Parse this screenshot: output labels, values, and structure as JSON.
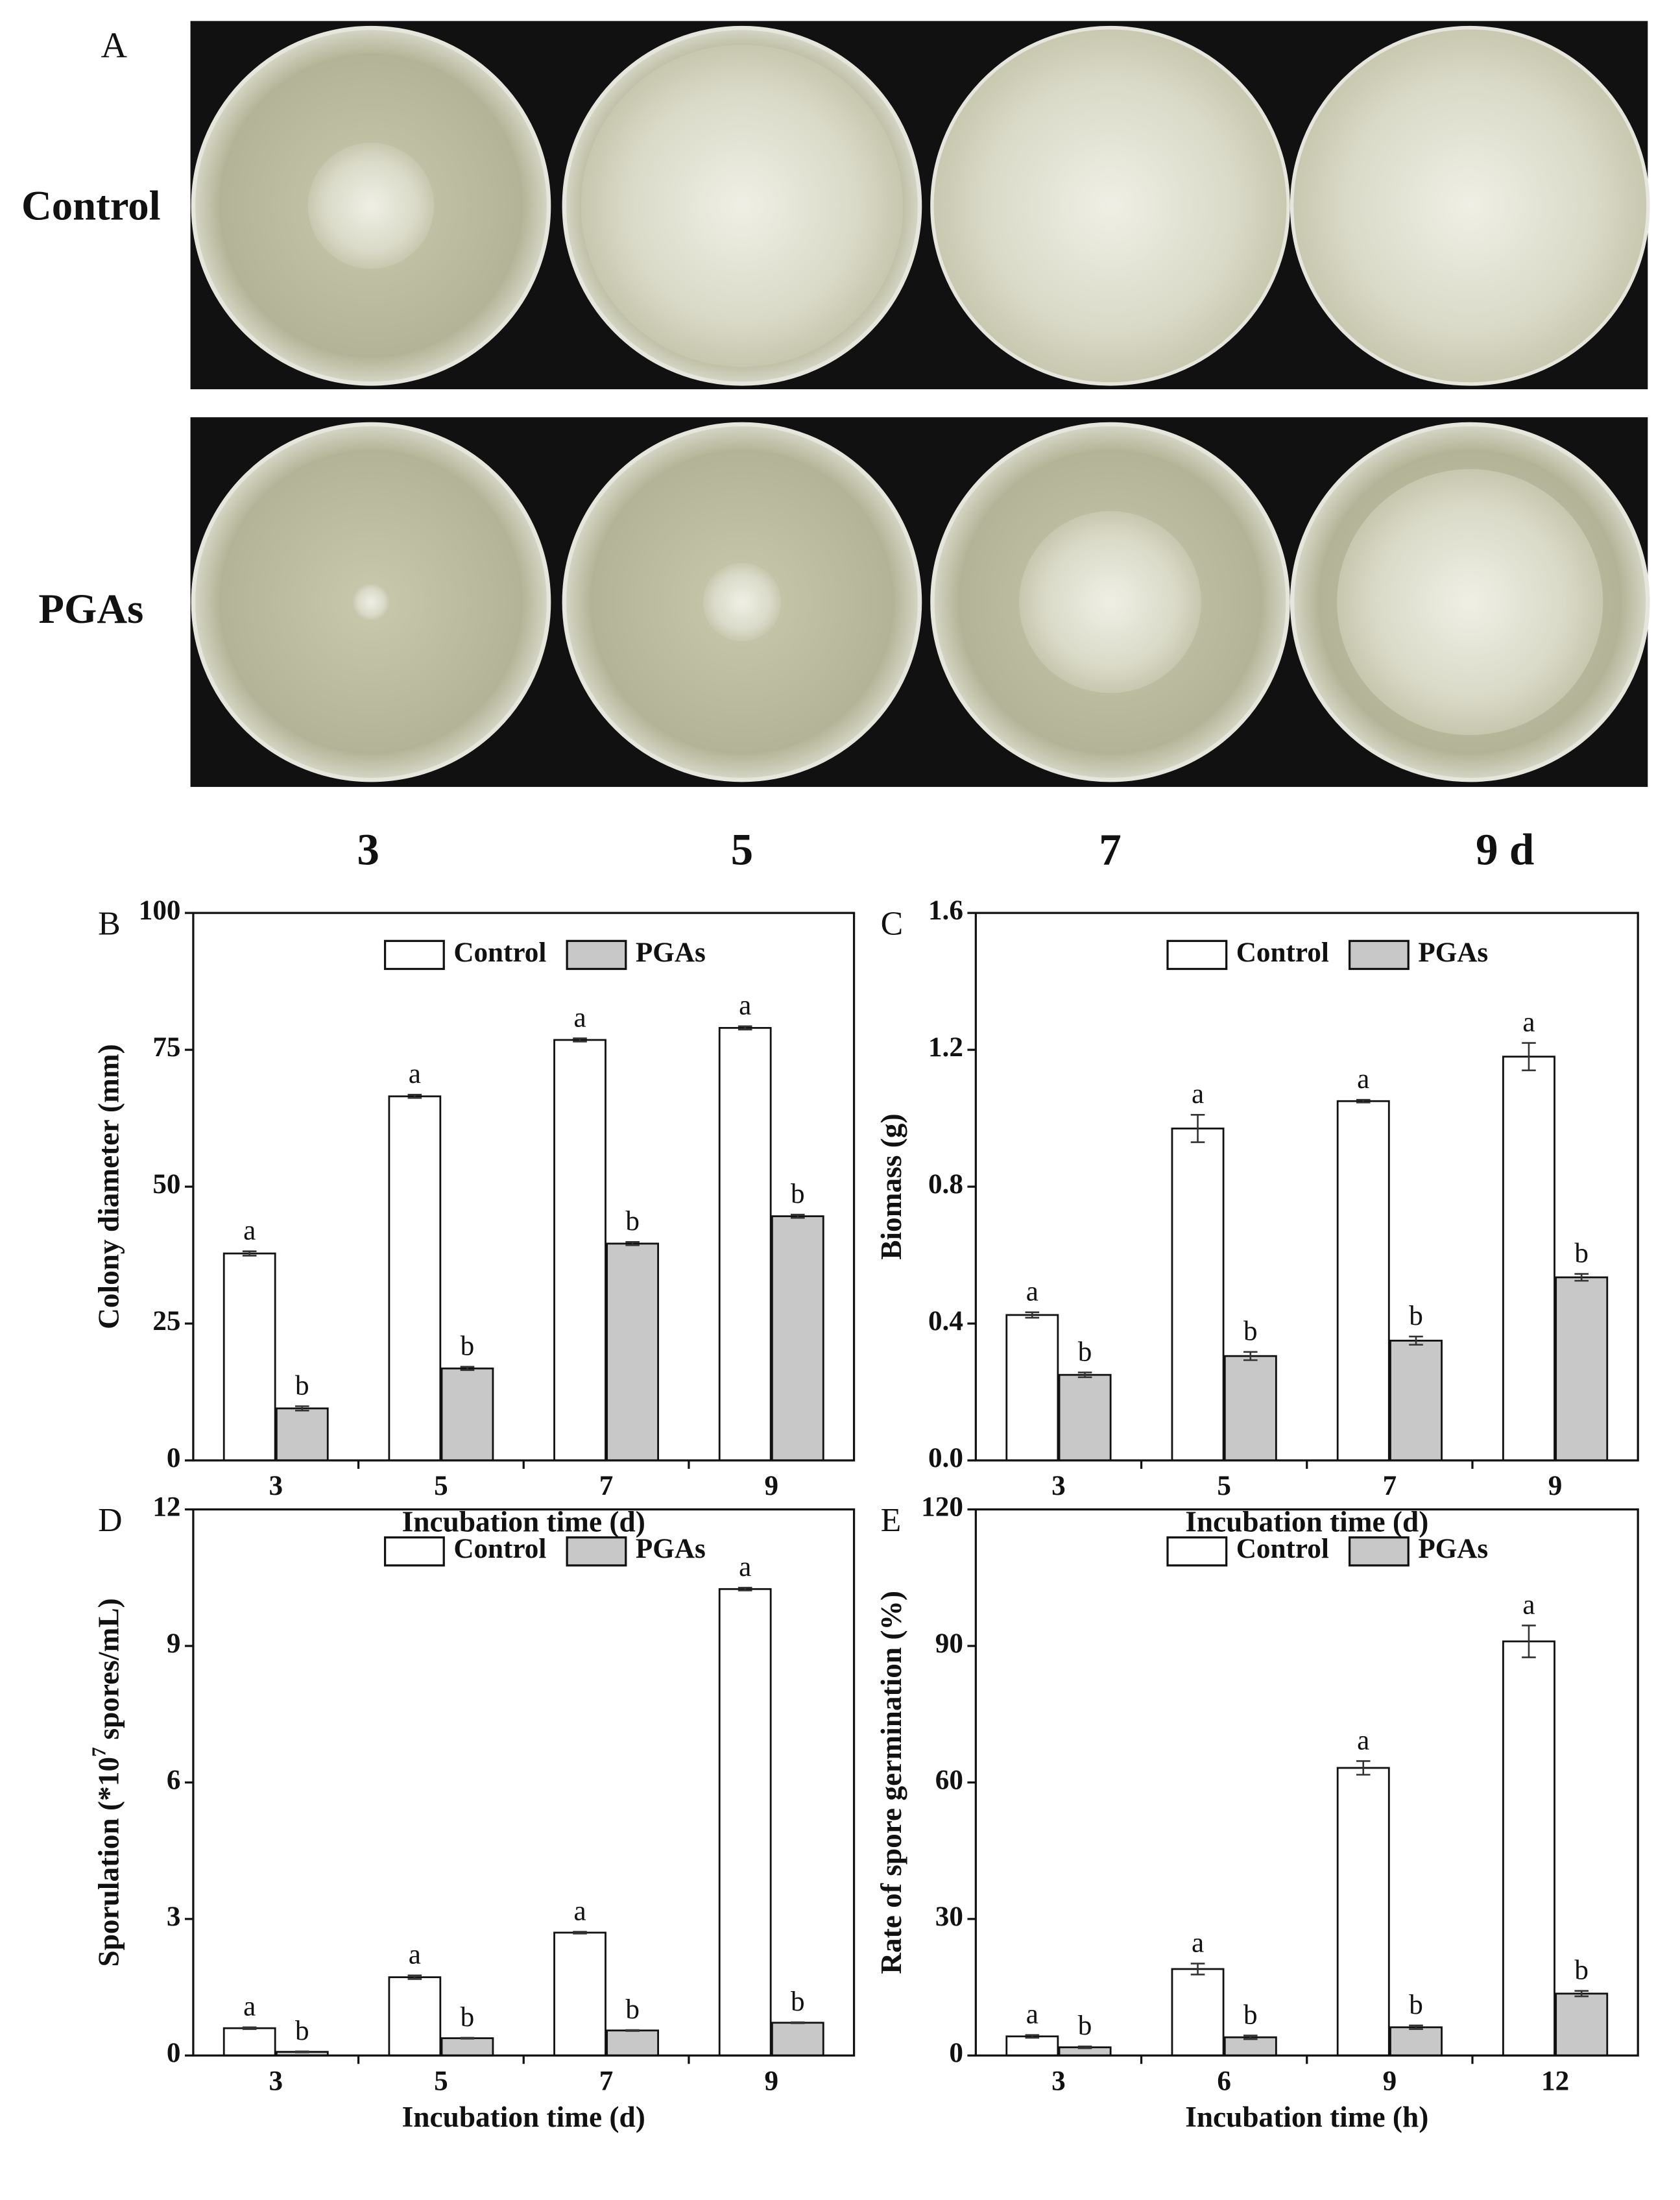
{
  "panel_a": {
    "label": "A",
    "rows": [
      "Control",
      "PGAs"
    ],
    "columns": [
      "3",
      "5",
      "7",
      "9 d"
    ]
  },
  "chart_data": [
    {
      "type": "bar",
      "panel": "B",
      "ylabel": [
        "Colony diameter (mm)"
      ],
      "xlabel": "Incubation time (d)",
      "categories": [
        "3",
        "5",
        "7",
        "9"
      ],
      "ylim": [
        0,
        100
      ],
      "yticks": [
        0,
        25,
        50,
        75,
        100
      ],
      "series": [
        {
          "name": "Control",
          "color": "#ffffff",
          "values": [
            37.8,
            66.5,
            76.8,
            79
          ],
          "errors": [
            0.4,
            0.3,
            0.3,
            0.3
          ],
          "letters": [
            "a",
            "a",
            "a",
            "a"
          ]
        },
        {
          "name": "PGAs",
          "color": "#c8c8c8",
          "values": [
            9.5,
            16.8,
            39.6,
            44.6
          ],
          "errors": [
            0.4,
            0.3,
            0.3,
            0.3
          ],
          "letters": [
            "b",
            "b",
            "b",
            "b"
          ]
        }
      ]
    },
    {
      "type": "bar",
      "panel": "C",
      "ylabel": [
        "Biomass (g)"
      ],
      "xlabel": "Incubation time (d)",
      "categories": [
        "3",
        "5",
        "7",
        "9"
      ],
      "ylim": [
        0,
        1.6
      ],
      "yticks": [
        {
          "value": 0,
          "label": "0.0"
        },
        0.4,
        0.8,
        1.2,
        1.6
      ],
      "series": [
        {
          "name": "Control",
          "color": "#ffffff",
          "values": [
            0.425,
            0.97,
            1.05,
            1.18
          ],
          "errors": [
            0.008,
            0.04,
            0.004,
            0.04
          ],
          "letters": [
            "a",
            "a",
            "a",
            "a"
          ]
        },
        {
          "name": "PGAs",
          "color": "#c8c8c8",
          "values": [
            0.25,
            0.305,
            0.35,
            0.535
          ],
          "errors": [
            0.007,
            0.012,
            0.012,
            0.01
          ],
          "letters": [
            "b",
            "b",
            "b",
            "b"
          ]
        }
      ]
    },
    {
      "type": "bar",
      "panel": "D",
      "ylabel": [
        "Sporulation (*10",
        "7",
        " spores/mL)"
      ],
      "xlabel": "Incubation time (d)",
      "categories": [
        "3",
        "5",
        "7",
        "9"
      ],
      "ylim": [
        0,
        12
      ],
      "yticks": [
        0,
        3,
        6,
        9,
        12
      ],
      "series": [
        {
          "name": "Control",
          "color": "#ffffff",
          "values": [
            0.6,
            1.72,
            2.7,
            10.25
          ],
          "errors": [
            0.02,
            0.04,
            0.02,
            0.03
          ],
          "letters": [
            "a",
            "a",
            "a",
            "a"
          ]
        },
        {
          "name": "PGAs",
          "color": "#c8c8c8",
          "values": [
            0.08,
            0.38,
            0.55,
            0.72
          ],
          "errors": [
            0.01,
            0.01,
            0.01,
            0.01
          ],
          "letters": [
            "b",
            "b",
            "b",
            "b"
          ]
        }
      ]
    },
    {
      "type": "bar",
      "panel": "E",
      "ylabel": [
        "Rate of spore germination (%)"
      ],
      "xlabel": "Incubation time (h)",
      "categories": [
        "3",
        "6",
        "9",
        "12"
      ],
      "ylim": [
        0,
        120
      ],
      "yticks": [
        0,
        30,
        60,
        90,
        120
      ],
      "series": [
        {
          "name": "Control",
          "color": "#ffffff",
          "values": [
            4.2,
            19,
            63.2,
            91
          ],
          "errors": [
            0.3,
            1.2,
            1.5,
            3.5
          ],
          "letters": [
            "a",
            "a",
            "a",
            "a"
          ]
        },
        {
          "name": "PGAs",
          "color": "#c8c8c8",
          "values": [
            1.8,
            4,
            6.2,
            13.6
          ],
          "errors": [
            0.2,
            0.4,
            0.4,
            0.6
          ],
          "letters": [
            "b",
            "b",
            "b",
            "b"
          ]
        }
      ]
    }
  ]
}
